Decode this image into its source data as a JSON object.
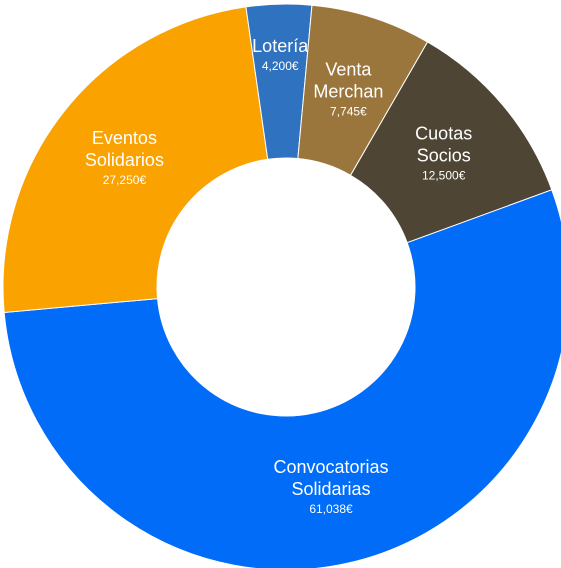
{
  "chart_data": {
    "type": "pie",
    "variant": "donut",
    "currency_suffix": "€",
    "slices": [
      {
        "name_lines": [
          "Cuotas",
          "Socios"
        ],
        "value": 12500,
        "value_label": "12,500€",
        "color": "#4E4535"
      },
      {
        "name_lines": [
          "Convocatorias",
          "Solidarias"
        ],
        "value": 61038,
        "value_label": "61,038€",
        "color": "#006CF8"
      },
      {
        "name_lines": [
          "Eventos",
          "Solidarios"
        ],
        "value": 27250,
        "value_label": "27,250€",
        "color": "#F9A200"
      },
      {
        "name_lines": [
          "Lotería"
        ],
        "value": 4200,
        "value_label": "4,200€",
        "color": "#2F72C0"
      },
      {
        "name_lines": [
          "Venta",
          "Merchan"
        ],
        "value": 7745,
        "value_label": "7,745€",
        "color": "#9B763C"
      }
    ]
  }
}
